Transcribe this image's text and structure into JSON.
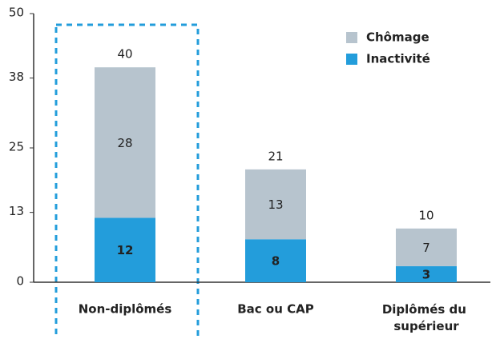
{
  "chart_data": {
    "type": "stacked_bar",
    "categories": [
      "Non-diplômés",
      "Bac ou CAP",
      "Diplômés du supérieur"
    ],
    "series": [
      {
        "name": "Inactivité",
        "color": "#239ddb",
        "values": [
          12,
          8,
          3
        ]
      },
      {
        "name": "Chômage",
        "color": "#b7c4ce",
        "values": [
          28,
          13,
          7
        ]
      }
    ],
    "totals": [
      40,
      21,
      10
    ],
    "ylim": [
      0,
      50
    ],
    "yticks": [
      0,
      13,
      25,
      38,
      50
    ],
    "legend": "upper right"
  }
}
